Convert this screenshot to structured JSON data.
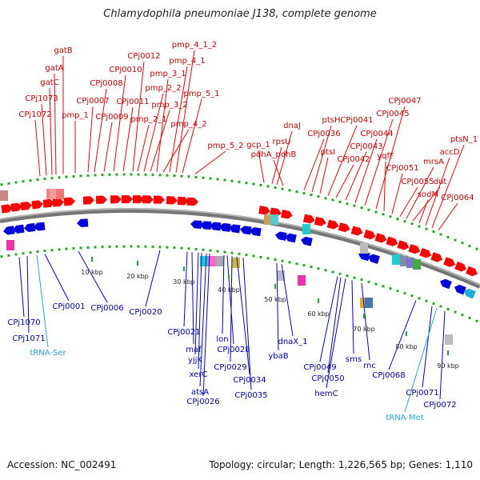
{
  "title": "Chlamydophila pneumoniae J138, complete genome",
  "footer": {
    "accession": "Accession: NC_002491",
    "summary": "Topology: circular; Length: 1,226,565 bp; Genes: 1,110"
  },
  "colors": {
    "forward_gene": "#ff0000",
    "reverse_gene": "#0000dd",
    "trna": "#22aadd",
    "backbone": "#777777",
    "tick": "#22aa22"
  },
  "labels_top": [
    {
      "text": "gatB"
    },
    {
      "text": "gatA"
    },
    {
      "text": "gatC"
    },
    {
      "text": "CPj1073"
    },
    {
      "text": "CPj1072"
    },
    {
      "text": "pmp_1"
    },
    {
      "text": "CPj0007"
    },
    {
      "text": "CPj0008"
    },
    {
      "text": "CPj0009"
    },
    {
      "text": "CPj0010"
    },
    {
      "text": "CPj0011"
    },
    {
      "text": "CPj0012"
    },
    {
      "text": "pmp_2_1"
    },
    {
      "text": "pmp_2_2"
    },
    {
      "text": "pmp_3_2"
    },
    {
      "text": "pmp_3_1"
    },
    {
      "text": "pmp_4_2"
    },
    {
      "text": "pmp_4_1"
    },
    {
      "text": "pmp_4_1_2"
    },
    {
      "text": "pmp_5_1"
    },
    {
      "text": "pmp_5_2"
    },
    {
      "text": "gcp_1"
    },
    {
      "text": "rpsU"
    },
    {
      "text": "dnaJ"
    },
    {
      "text": "pdhA_pdhB"
    },
    {
      "text": "CPj0036"
    },
    {
      "text": "ptsH"
    },
    {
      "text": "ptsI"
    },
    {
      "text": "CPj0041"
    },
    {
      "text": "CPj0042"
    },
    {
      "text": "CPj0043"
    },
    {
      "text": "CPj0044"
    },
    {
      "text": "CPj0045"
    },
    {
      "text": "CPj0047"
    },
    {
      "text": "yqfF"
    },
    {
      "text": "CPj0051"
    },
    {
      "text": "CPj0055"
    },
    {
      "text": "mrsA"
    },
    {
      "text": "dut"
    },
    {
      "text": "sodM"
    },
    {
      "text": "accD"
    },
    {
      "text": "ptsN_1"
    },
    {
      "text": "CPj0064"
    }
  ],
  "labels_bottom": [
    {
      "text": "CPj1070",
      "kind": "gene"
    },
    {
      "text": "CPj1071",
      "kind": "gene"
    },
    {
      "text": "tRNA-Ser",
      "kind": "trna"
    },
    {
      "text": "CPj0001",
      "kind": "gene"
    },
    {
      "text": "CPj0006",
      "kind": "gene"
    },
    {
      "text": "CPj0020",
      "kind": "gene"
    },
    {
      "text": "CPj0021",
      "kind": "gene"
    },
    {
      "text": "maf",
      "kind": "gene"
    },
    {
      "text": "yjjK",
      "kind": "gene"
    },
    {
      "text": "xerC",
      "kind": "gene"
    },
    {
      "text": "atsA",
      "kind": "gene"
    },
    {
      "text": "CPj0026",
      "kind": "gene"
    },
    {
      "text": "lon",
      "kind": "gene"
    },
    {
      "text": "CPj0028",
      "kind": "gene"
    },
    {
      "text": "CPj0029",
      "kind": "gene"
    },
    {
      "text": "CPj0034",
      "kind": "gene"
    },
    {
      "text": "CPj0035",
      "kind": "gene"
    },
    {
      "text": "ybaB",
      "kind": "gene"
    },
    {
      "text": "dnaX_1",
      "kind": "gene"
    },
    {
      "text": "CPj0049",
      "kind": "gene"
    },
    {
      "text": "CPj0050",
      "kind": "gene"
    },
    {
      "text": "hemC",
      "kind": "gene"
    },
    {
      "text": "sms",
      "kind": "gene"
    },
    {
      "text": "rnc",
      "kind": "gene"
    },
    {
      "text": "CPj0068",
      "kind": "gene"
    },
    {
      "text": "CPj0071",
      "kind": "gene"
    },
    {
      "text": "tRNA-Met",
      "kind": "trna"
    },
    {
      "text": "CPj0072",
      "kind": "gene"
    }
  ],
  "kbp_ticks": [
    "10 kbp",
    "20 kbp",
    "30 kbp",
    "40 kbp",
    "50 kbp",
    "60 kbp",
    "70 kbp",
    "80 kbp",
    "90 kbp"
  ]
}
